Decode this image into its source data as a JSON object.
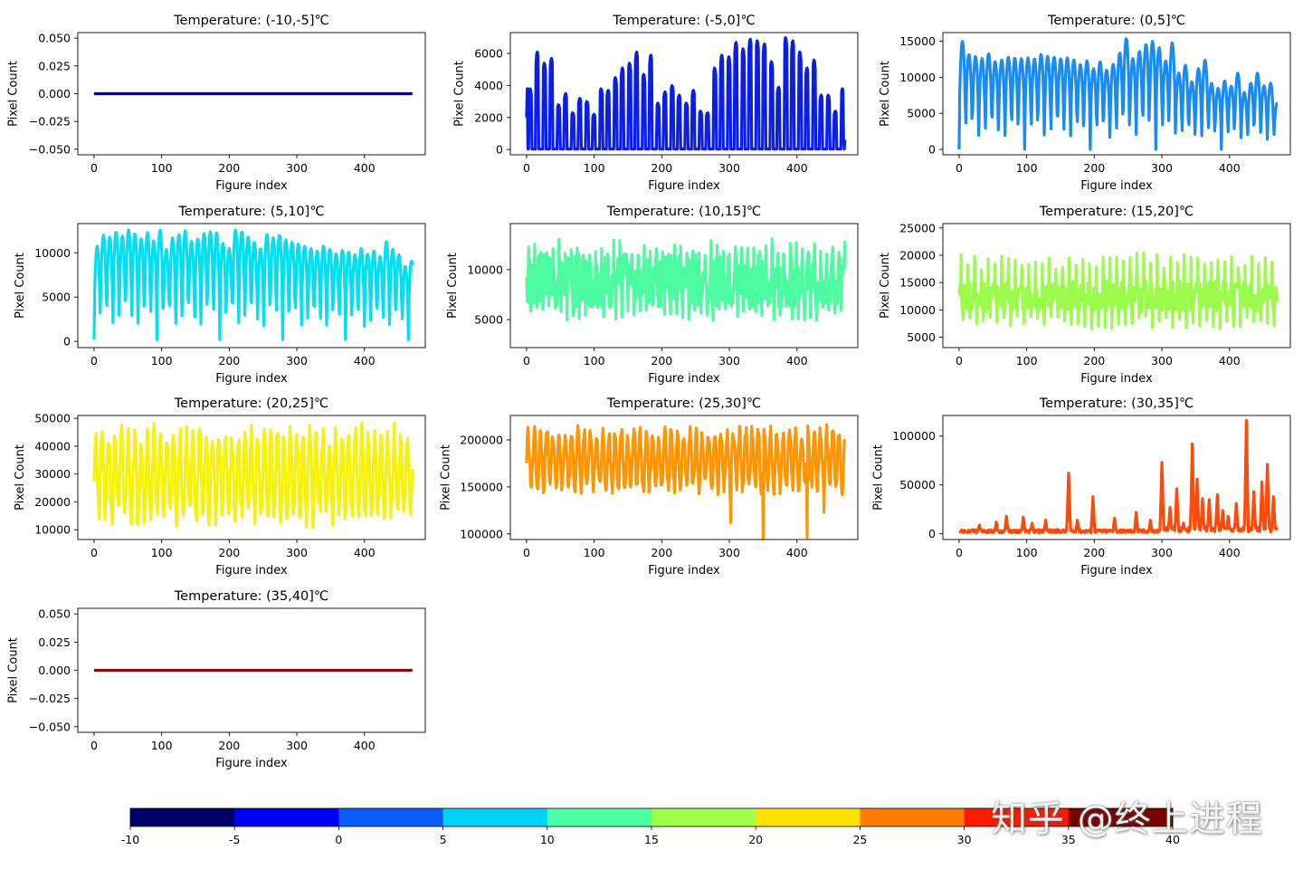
{
  "chart_data": [
    {
      "type": "line",
      "title": "Temperature: (-10,-5]℃",
      "xlabel": "Figure index",
      "ylabel": "Pixel Count",
      "color": "#00008b",
      "n": 472,
      "xlim": [
        -24,
        490
      ],
      "ylim": [
        -0.055,
        0.055
      ],
      "xticks": [
        0,
        100,
        200,
        300,
        400
      ],
      "yticks": [
        -0.05,
        -0.025,
        0,
        0.025,
        0.05
      ],
      "ytick_labels": [
        "−0.050",
        "−0.025",
        "0.000",
        "0.025",
        "0.050"
      ],
      "model": {
        "kind": "flat",
        "value": 0
      }
    },
    {
      "type": "line",
      "title": "Temperature: (-5,0]℃",
      "xlabel": "Figure index",
      "ylabel": "Pixel Count",
      "color": "#0a1ee6",
      "n": 472,
      "xlim": [
        -24,
        490
      ],
      "ylim": [
        -330,
        7300
      ],
      "xticks": [
        0,
        100,
        200,
        300,
        400
      ],
      "yticks": [
        0,
        2000,
        4000,
        6000
      ],
      "ytick_labels": [
        "0",
        "2000",
        "4000",
        "6000"
      ],
      "model": {
        "kind": "spikes",
        "period": 10.5,
        "width": 2.2,
        "baseline": 0,
        "peaks": [
          3800,
          6100,
          5400,
          5700,
          2800,
          3500,
          2300,
          3200,
          3000,
          2200,
          3800,
          3700,
          4500,
          5100,
          5400,
          6100,
          4700,
          5900,
          2900,
          3600,
          4000,
          3400,
          2900,
          3700,
          2400,
          2300,
          5100,
          5900,
          5800,
          6700,
          6300,
          6900,
          6800,
          6600,
          5500,
          3900,
          7000,
          6800,
          6100,
          5100,
          5600,
          3400,
          3400,
          2400
        ]
      }
    },
    {
      "type": "line",
      "title": "Temperature: (0,5]℃",
      "xlabel": "Figure index",
      "ylabel": "Pixel Count",
      "color": "#1a8cf0",
      "n": 472,
      "xlim": [
        -24,
        490
      ],
      "ylim": [
        -750,
        16200
      ],
      "xticks": [
        0,
        100,
        200,
        300,
        400
      ],
      "yticks": [
        0,
        5000,
        10000,
        15000
      ],
      "ytick_labels": [
        "0",
        "5000",
        "10000",
        "15000"
      ],
      "model": {
        "kind": "osc",
        "period": 9.7,
        "baseline": 0,
        "peaks": [
          15000,
          13200,
          12900,
          12600,
          13300,
          12200,
          12400,
          12800,
          12700,
          12600,
          12700,
          12600,
          13200,
          12900,
          12800,
          12600,
          12700,
          12400,
          11800,
          12300,
          11200,
          12200,
          11000,
          11800,
          13400,
          15400,
          12600,
          13600,
          14600,
          15000,
          14100,
          12300,
          14800,
          10600,
          11700,
          9400,
          11200,
          12400,
          9200,
          8500,
          9500,
          8800,
          10600,
          7900,
          9200,
          10600,
          8800,
          9200,
          6400
        ]
      }
    },
    {
      "type": "line",
      "title": "Temperature: (5,10]℃",
      "xlabel": "Figure index",
      "ylabel": "Pixel Count",
      "color": "#00e0f0",
      "n": 472,
      "xlim": [
        -24,
        490
      ],
      "ylim": [
        -700,
        13300
      ],
      "xticks": [
        0,
        100,
        200,
        300,
        400
      ],
      "yticks": [
        0,
        5000,
        10000
      ],
      "ytick_labels": [
        "0",
        "5000",
        "10000"
      ],
      "model": {
        "kind": "osc",
        "period": 9.3,
        "baseline": 200,
        "peaks": [
          10800,
          12000,
          11800,
          12400,
          11900,
          12600,
          12200,
          11600,
          12300,
          11400,
          12600,
          10400,
          11700,
          12100,
          12500,
          11300,
          11600,
          12200,
          12400,
          12300,
          11100,
          10500,
          12600,
          12400,
          11800,
          11200,
          10500,
          12100,
          11700,
          12000,
          11500,
          11200,
          11000,
          10800,
          10500,
          10200,
          10800,
          10400,
          9900,
          10300,
          10100,
          9800,
          10500,
          9900,
          10200,
          9600,
          11300,
          10400,
          9800,
          8500,
          9100
        ]
      }
    },
    {
      "type": "line",
      "title": "Temperature: (10,15]℃",
      "xlabel": "Figure index",
      "ylabel": "Pixel Count",
      "color": "#4dfca0",
      "n": 472,
      "xlim": [
        -24,
        490
      ],
      "ylim": [
        2200,
        14600
      ],
      "xticks": [
        0,
        100,
        200,
        300,
        400
      ],
      "yticks": [
        5000,
        10000
      ],
      "ytick_labels": [
        "5000",
        "10000"
      ],
      "model": {
        "kind": "noisy",
        "mean": 8900,
        "amp": 2700,
        "seed": 7,
        "spikeEvery": 9,
        "spikeUp": 4200,
        "spikeDown": 4000
      }
    },
    {
      "type": "line",
      "title": "Temperature: (15,20]℃",
      "xlabel": "Figure index",
      "ylabel": "Pixel Count",
      "color": "#9cfc4c",
      "n": 472,
      "xlim": [
        -24,
        490
      ],
      "ylim": [
        3100,
        25800
      ],
      "xticks": [
        0,
        100,
        200,
        300,
        400
      ],
      "yticks": [
        5000,
        10000,
        15000,
        20000,
        25000
      ],
      "ytick_labels": [
        "5000",
        "10000",
        "15000",
        "20000",
        "25000"
      ],
      "model": {
        "kind": "noisy",
        "mean": 12500,
        "amp": 2800,
        "seed": 13,
        "spikeEvery": 10,
        "spikeUp": 8000,
        "spikeDown": 6000
      }
    },
    {
      "type": "line",
      "title": "Temperature: (20,25]℃",
      "xlabel": "Figure index",
      "ylabel": "Pixel Count",
      "color": "#f7f20a",
      "n": 472,
      "xlim": [
        -24,
        490
      ],
      "ylim": [
        6500,
        51000
      ],
      "xticks": [
        0,
        100,
        200,
        300,
        400
      ],
      "yticks": [
        10000,
        20000,
        30000,
        40000,
        50000
      ],
      "ytick_labels": [
        "10000",
        "20000",
        "30000",
        "40000",
        "50000"
      ],
      "model": {
        "kind": "osc2",
        "period": 9.6,
        "low": 15000,
        "high": 44000,
        "seed": 21,
        "jitter": 4500
      }
    },
    {
      "type": "line",
      "title": "Temperature: (25,30]℃",
      "xlabel": "Figure index",
      "ylabel": "Pixel Count",
      "color": "#ff9500",
      "n": 472,
      "xlim": [
        -24,
        490
      ],
      "ylim": [
        94000,
        226000
      ],
      "xticks": [
        0,
        100,
        200,
        300,
        400
      ],
      "yticks": [
        100000,
        150000,
        200000
      ],
      "ytick_labels": [
        "100000",
        "150000",
        "200000"
      ],
      "model": {
        "kind": "osc2",
        "period": 9.2,
        "low": 150000,
        "high": 208000,
        "seed": 33,
        "jitter": 9000,
        "dips": [
          [
            302,
            112000
          ],
          [
            350,
            95000
          ],
          [
            415,
            96000
          ],
          [
            440,
            123000
          ]
        ]
      }
    },
    {
      "type": "line",
      "title": "Temperature: (30,35]℃",
      "xlabel": "Figure index",
      "ylabel": "Pixel Count",
      "color": "#ff4a08",
      "n": 472,
      "xlim": [
        -24,
        490
      ],
      "ylim": [
        -5800,
        121000
      ],
      "xticks": [
        0,
        100,
        200,
        300,
        400
      ],
      "yticks": [
        0,
        50000,
        100000
      ],
      "ytick_labels": [
        "0",
        "50000",
        "100000"
      ],
      "model": {
        "kind": "bursts",
        "base": 3000,
        "seed": 45,
        "peaks": [
          [
            30,
            9000
          ],
          [
            55,
            12000
          ],
          [
            70,
            18000
          ],
          [
            95,
            17000
          ],
          [
            108,
            11000
          ],
          [
            128,
            14000
          ],
          [
            162,
            62000
          ],
          [
            175,
            14000
          ],
          [
            198,
            38000
          ],
          [
            230,
            16000
          ],
          [
            262,
            22000
          ],
          [
            283,
            14000
          ],
          [
            300,
            73000
          ],
          [
            312,
            27000
          ],
          [
            322,
            46000
          ],
          [
            332,
            11000
          ],
          [
            345,
            92000
          ],
          [
            352,
            56000
          ],
          [
            360,
            36000
          ],
          [
            370,
            35000
          ],
          [
            382,
            40000
          ],
          [
            390,
            24000
          ],
          [
            398,
            18000
          ],
          [
            410,
            31000
          ],
          [
            425,
            116000
          ],
          [
            436,
            43000
          ],
          [
            448,
            53000
          ],
          [
            456,
            71000
          ],
          [
            465,
            38000
          ]
        ]
      }
    },
    {
      "type": "line",
      "title": "Temperature: (35,40]℃",
      "xlabel": "Figure index",
      "ylabel": "Pixel Count",
      "color": "#a50000",
      "n": 472,
      "xlim": [
        -24,
        490
      ],
      "ylim": [
        -0.055,
        0.055
      ],
      "xticks": [
        0,
        100,
        200,
        300,
        400
      ],
      "yticks": [
        -0.05,
        -0.025,
        0,
        0.025,
        0.05
      ],
      "ytick_labels": [
        "−0.050",
        "−0.025",
        "0.000",
        "0.025",
        "0.050"
      ],
      "model": {
        "kind": "flat",
        "value": 0
      }
    }
  ],
  "colorbar": {
    "ticks": [
      "-10",
      "-5",
      "0",
      "5",
      "10",
      "15",
      "20",
      "25",
      "30",
      "35",
      "40"
    ],
    "colors": [
      "#00006a",
      "#0000ff",
      "#0a5cff",
      "#00d2f8",
      "#4cffa5",
      "#a0ff48",
      "#ffe000",
      "#ff7c00",
      "#ff1a00",
      "#7a0000"
    ]
  },
  "watermark": "知乎 @终上进程"
}
